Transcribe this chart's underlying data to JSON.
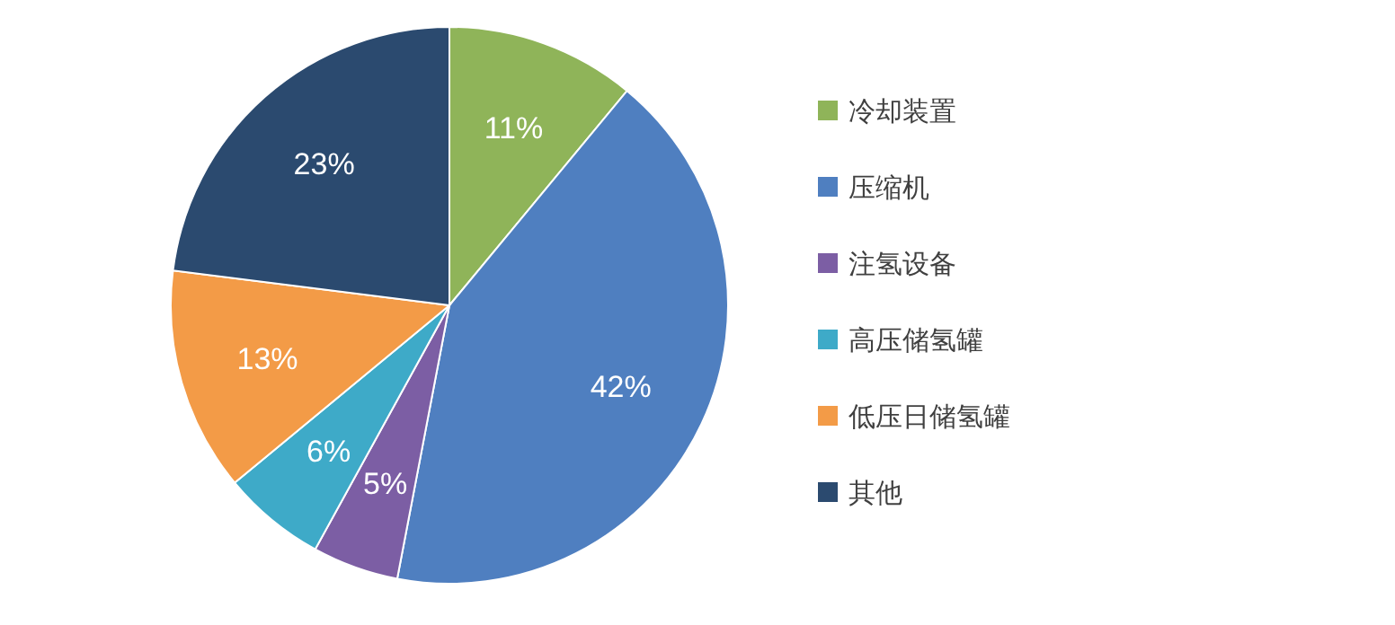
{
  "chart_data": {
    "type": "pie",
    "categories": [
      "冷却装置",
      "压缩机",
      "注氢设备",
      "高压储氢罐",
      "低压日储氢罐",
      "其他"
    ],
    "values": [
      11,
      42,
      5,
      6,
      13,
      23
    ],
    "colors": [
      "#8fb459",
      "#4f7fc0",
      "#7c5ea4",
      "#3eaac8",
      "#f39b47",
      "#2b4a6f"
    ],
    "value_labels": [
      "11%",
      "42%",
      "5%",
      "6%",
      "13%",
      "23%"
    ],
    "legend": "right"
  }
}
